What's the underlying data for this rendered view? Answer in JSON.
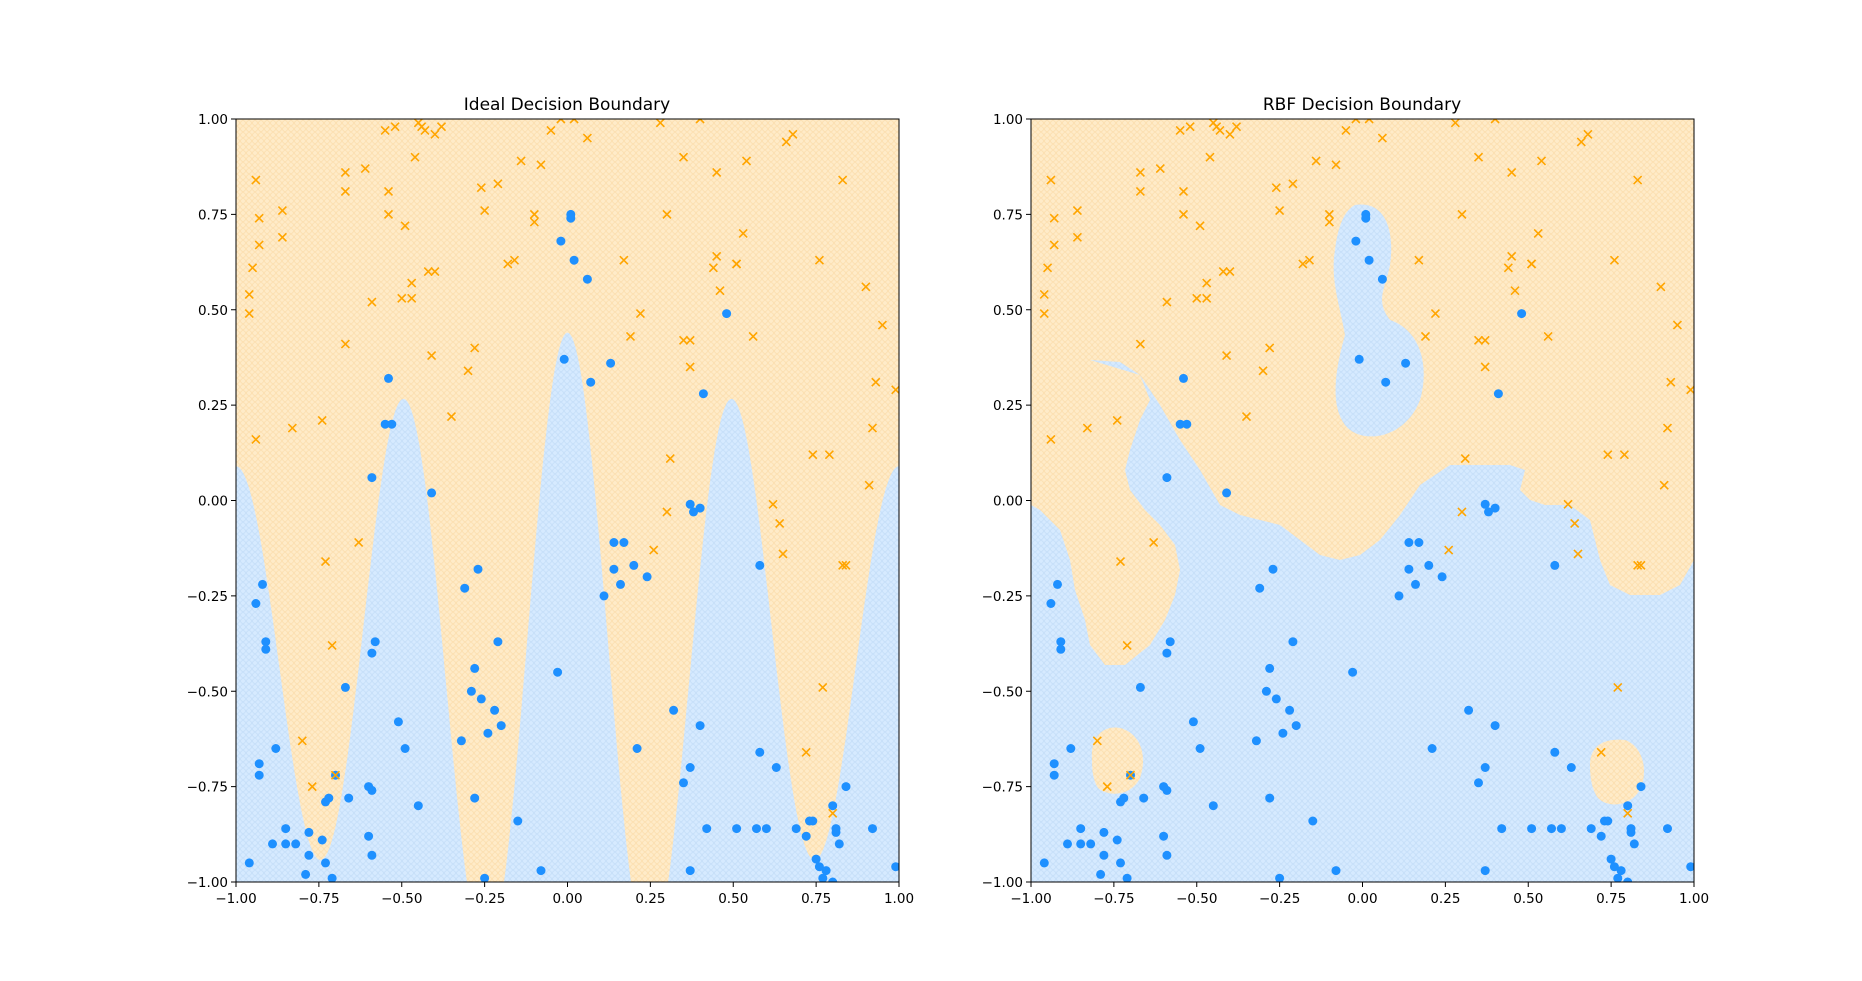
{
  "chart_data": [
    {
      "type": "scatter",
      "title": "Ideal Decision Boundary",
      "xlabel": "",
      "ylabel": "",
      "xlim": [
        -1.0,
        1.0
      ],
      "ylim": [
        -1.0,
        1.0
      ],
      "x_ticks": [
        "−1.00",
        "−0.75",
        "−0.50",
        "−0.25",
        "0.00",
        "0.25",
        "0.50",
        "0.75",
        "1.00"
      ],
      "y_ticks": [
        "−1.00",
        "−0.75",
        "−0.50",
        "−0.25",
        "0.00",
        "0.25",
        "0.50",
        "0.75",
        "1.00"
      ],
      "grid": false,
      "region_boundary": "y = cos(3πx)/2 ± 0.5 band: blue region below curve y ≈ 0.5·cos(3π·x)·... (class 0 below, class 1 above)",
      "colors": {
        "class_o": "#1e90ff",
        "class_x": "#ffa500",
        "region_o": "#d6eaff",
        "region_x": "#ffebc8"
      }
    },
    {
      "type": "scatter",
      "title": "RBF Decision Boundary",
      "xlabel": "",
      "ylabel": "",
      "xlim": [
        -1.0,
        1.0
      ],
      "ylim": [
        -1.0,
        1.0
      ],
      "x_ticks": [
        "−1.00",
        "−0.75",
        "−0.50",
        "−0.25",
        "0.00",
        "0.25",
        "0.50",
        "0.75",
        "1.00"
      ],
      "y_ticks": [
        "−1.00",
        "−0.75",
        "−0.50",
        "−0.25",
        "0.00",
        "0.25",
        "0.50",
        "0.75",
        "1.00"
      ],
      "grid": false,
      "colors": {
        "class_o": "#1e90ff",
        "class_x": "#ffa500",
        "region_o": "#d6eaff",
        "region_x": "#ffebc8"
      }
    }
  ],
  "points": {
    "o": [
      [
        -0.96,
        -0.95
      ],
      [
        -0.94,
        -0.27
      ],
      [
        -0.93,
        -0.69
      ],
      [
        -0.92,
        -0.22
      ],
      [
        -0.91,
        -0.37
      ],
      [
        -0.91,
        -0.39
      ],
      [
        -0.93,
        -0.72
      ],
      [
        -0.88,
        -0.65
      ],
      [
        -0.85,
        -0.86
      ],
      [
        -0.85,
        -0.9
      ],
      [
        -0.82,
        -0.9
      ],
      [
        -0.79,
        -0.98
      ],
      [
        -0.78,
        -0.87
      ],
      [
        -0.78,
        -0.93
      ],
      [
        -0.74,
        -0.89
      ],
      [
        -0.73,
        -0.95
      ],
      [
        -0.73,
        -0.79
      ],
      [
        -0.72,
        -0.78
      ],
      [
        -0.71,
        -0.99
      ],
      [
        -0.7,
        -0.72
      ],
      [
        -0.67,
        -0.49
      ],
      [
        -0.66,
        -0.78
      ],
      [
        -0.6,
        -0.75
      ],
      [
        -0.6,
        -0.88
      ],
      [
        -0.59,
        -0.93
      ],
      [
        -0.59,
        -0.76
      ],
      [
        -0.59,
        -0.4
      ],
      [
        -0.58,
        -0.37
      ],
      [
        -0.59,
        0.06
      ],
      [
        -0.54,
        0.32
      ],
      [
        -0.55,
        0.2
      ],
      [
        -0.53,
        0.2
      ],
      [
        -0.51,
        -0.58
      ],
      [
        -0.49,
        -0.65
      ],
      [
        -0.45,
        -0.8
      ],
      [
        -0.41,
        0.02
      ],
      [
        -0.32,
        -0.63
      ],
      [
        -0.31,
        -0.23
      ],
      [
        -0.29,
        -0.5
      ],
      [
        -0.28,
        -0.44
      ],
      [
        -0.28,
        -0.78
      ],
      [
        -0.27,
        -0.18
      ],
      [
        -0.26,
        -0.52
      ],
      [
        -0.25,
        -0.99
      ],
      [
        -0.24,
        -0.61
      ],
      [
        -0.22,
        -0.55
      ],
      [
        -0.21,
        -0.37
      ],
      [
        -0.2,
        -0.59
      ],
      [
        -0.15,
        -0.84
      ],
      [
        -0.08,
        -0.97
      ],
      [
        -0.03,
        -0.45
      ],
      [
        -0.02,
        0.68
      ],
      [
        -0.01,
        0.37
      ],
      [
        0.01,
        0.74
      ],
      [
        0.01,
        0.75
      ],
      [
        0.02,
        0.63
      ],
      [
        0.06,
        0.58
      ],
      [
        0.07,
        0.31
      ],
      [
        0.11,
        -0.25
      ],
      [
        0.13,
        0.36
      ],
      [
        0.14,
        -0.11
      ],
      [
        0.14,
        -0.18
      ],
      [
        0.16,
        -0.22
      ],
      [
        0.17,
        -0.11
      ],
      [
        0.2,
        -0.17
      ],
      [
        0.21,
        -0.65
      ],
      [
        0.24,
        -0.2
      ],
      [
        0.32,
        -0.55
      ],
      [
        0.35,
        -0.74
      ],
      [
        0.37,
        -0.01
      ],
      [
        0.37,
        -0.7
      ],
      [
        0.37,
        -0.97
      ],
      [
        0.38,
        -0.03
      ],
      [
        0.4,
        -0.02
      ],
      [
        0.4,
        -0.59
      ],
      [
        0.41,
        0.28
      ],
      [
        0.42,
        -0.86
      ],
      [
        0.48,
        0.49
      ],
      [
        0.51,
        -0.86
      ],
      [
        0.57,
        -0.86
      ],
      [
        0.58,
        -0.17
      ],
      [
        0.58,
        -0.66
      ],
      [
        0.6,
        -0.86
      ],
      [
        0.63,
        -0.7
      ],
      [
        0.69,
        -0.86
      ],
      [
        0.72,
        -0.88
      ],
      [
        0.73,
        -0.84
      ],
      [
        0.74,
        -0.84
      ],
      [
        0.75,
        -0.94
      ],
      [
        0.76,
        -0.96
      ],
      [
        0.77,
        -0.99
      ],
      [
        0.78,
        -0.97
      ],
      [
        0.8,
        -1.0
      ],
      [
        0.8,
        -0.8
      ],
      [
        0.81,
        -0.87
      ],
      [
        0.81,
        -0.86
      ],
      [
        0.82,
        -0.9
      ],
      [
        0.84,
        -0.75
      ],
      [
        0.92,
        -0.86
      ],
      [
        0.99,
        -0.96
      ],
      [
        -0.89,
        -0.9
      ]
    ],
    "x": [
      [
        -0.96,
        0.54
      ],
      [
        -0.96,
        0.49
      ],
      [
        -0.95,
        0.61
      ],
      [
        -0.94,
        0.84
      ],
      [
        -0.93,
        0.74
      ],
      [
        -0.93,
        0.67
      ],
      [
        -0.94,
        0.16
      ],
      [
        -0.86,
        0.76
      ],
      [
        -0.86,
        0.69
      ],
      [
        -0.83,
        0.19
      ],
      [
        -0.8,
        -0.63
      ],
      [
        -0.77,
        -0.75
      ],
      [
        -0.74,
        0.21
      ],
      [
        -0.73,
        -0.16
      ],
      [
        -0.71,
        -0.38
      ],
      [
        -0.7,
        -0.72
      ],
      [
        -0.67,
        0.86
      ],
      [
        -0.67,
        0.81
      ],
      [
        -0.67,
        0.41
      ],
      [
        -0.63,
        -0.11
      ],
      [
        -0.61,
        0.87
      ],
      [
        -0.59,
        0.52
      ],
      [
        -0.55,
        0.97
      ],
      [
        -0.54,
        0.81
      ],
      [
        -0.54,
        0.75
      ],
      [
        -0.52,
        0.98
      ],
      [
        -0.5,
        0.53
      ],
      [
        -0.49,
        0.72
      ],
      [
        -0.47,
        0.57
      ],
      [
        -0.47,
        0.53
      ],
      [
        -0.46,
        0.9
      ],
      [
        -0.45,
        0.99
      ],
      [
        -0.44,
        0.98
      ],
      [
        -0.43,
        0.97
      ],
      [
        -0.42,
        0.6
      ],
      [
        -0.41,
        0.38
      ],
      [
        -0.4,
        0.6
      ],
      [
        -0.4,
        0.96
      ],
      [
        -0.38,
        0.98
      ],
      [
        -0.35,
        0.22
      ],
      [
        -0.3,
        0.34
      ],
      [
        -0.28,
        0.4
      ],
      [
        -0.26,
        0.82
      ],
      [
        -0.25,
        0.76
      ],
      [
        -0.21,
        0.83
      ],
      [
        -0.18,
        0.62
      ],
      [
        -0.16,
        0.63
      ],
      [
        -0.14,
        0.89
      ],
      [
        -0.1,
        0.73
      ],
      [
        -0.1,
        0.75
      ],
      [
        -0.08,
        0.88
      ],
      [
        -0.05,
        0.97
      ],
      [
        -0.02,
        1.0
      ],
      [
        0.02,
        1.0
      ],
      [
        0.06,
        0.95
      ],
      [
        0.17,
        0.63
      ],
      [
        0.19,
        0.43
      ],
      [
        0.22,
        0.49
      ],
      [
        0.26,
        -0.13
      ],
      [
        0.28,
        0.99
      ],
      [
        0.3,
        -0.03
      ],
      [
        0.3,
        0.75
      ],
      [
        0.31,
        0.11
      ],
      [
        0.35,
        0.9
      ],
      [
        0.35,
        0.42
      ],
      [
        0.37,
        0.35
      ],
      [
        0.37,
        0.42
      ],
      [
        0.4,
        1.0
      ],
      [
        0.44,
        0.61
      ],
      [
        0.45,
        0.86
      ],
      [
        0.45,
        0.64
      ],
      [
        0.46,
        0.55
      ],
      [
        0.51,
        0.62
      ],
      [
        0.51,
        0.62
      ],
      [
        0.53,
        0.7
      ],
      [
        0.54,
        0.89
      ],
      [
        0.56,
        0.43
      ],
      [
        0.62,
        -0.01
      ],
      [
        0.64,
        -0.06
      ],
      [
        0.65,
        -0.14
      ],
      [
        0.66,
        0.94
      ],
      [
        0.68,
        0.96
      ],
      [
        0.72,
        -0.66
      ],
      [
        0.74,
        0.12
      ],
      [
        0.76,
        0.63
      ],
      [
        0.77,
        -0.49
      ],
      [
        0.79,
        0.12
      ],
      [
        0.8,
        -0.82
      ],
      [
        0.83,
        -0.17
      ],
      [
        0.83,
        0.84
      ],
      [
        0.9,
        0.56
      ],
      [
        0.91,
        0.04
      ],
      [
        0.92,
        0.19
      ],
      [
        0.93,
        0.31
      ],
      [
        0.95,
        0.46
      ],
      [
        0.99,
        0.29
      ],
      [
        0.84,
        -0.17
      ]
    ]
  }
}
